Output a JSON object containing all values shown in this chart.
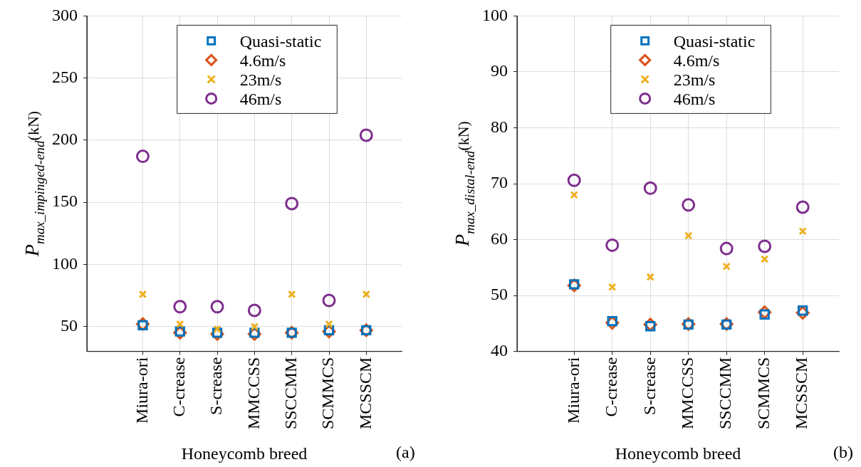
{
  "chart_data": [
    {
      "type": "scatter",
      "categories": [
        "Miura-ori",
        "C-crease",
        "S-crease",
        "MMCCSS",
        "SSCCMM",
        "SCMMCS",
        "MCSSCM"
      ],
      "xlabel": "Honeycomb breed",
      "ylabel": "P$_{max_impinged-end}$(kN)",
      "ylim": [
        30,
        300
      ],
      "yticks": [
        50,
        100,
        150,
        200,
        250,
        300
      ],
      "grid": true,
      "legend": "top",
      "annotations": [
        "(a)"
      ],
      "series": [
        {
          "name": "Quasi-static",
          "color": "#0072bd",
          "marker": "square",
          "values": [
            51,
            46,
            45,
            45,
            45,
            47,
            47
          ]
        },
        {
          "name": "4.6m/s",
          "color": "#d95319",
          "marker": "diamond",
          "values": [
            52,
            45,
            44,
            44,
            45,
            46,
            47
          ]
        },
        {
          "name": "23m/s",
          "color": "#edb120",
          "marker": "cross",
          "values": [
            76,
            52,
            48,
            50,
            76,
            52,
            76
          ]
        },
        {
          "name": "46m/s",
          "color": "#7e2f8e",
          "marker": "circle",
          "values": [
            187,
            66,
            66,
            63,
            149,
            71,
            204
          ]
        }
      ]
    },
    {
      "type": "scatter",
      "categories": [
        "Miura-ori",
        "C-crease",
        "S-crease",
        "MMCCSS",
        "SSCCMM",
        "SCMMCS",
        "MCSSCM"
      ],
      "xlabel": "Honeycomb breed",
      "ylabel": "P$_{max_distal-end}$(kN)",
      "ylim": [
        40,
        100
      ],
      "yticks": [
        40,
        50,
        60,
        70,
        80,
        90,
        100
      ],
      "grid": true,
      "legend": "top",
      "annotations": [
        "(b)"
      ],
      "series": [
        {
          "name": "Quasi-static",
          "color": "#0072bd",
          "marker": "square",
          "values": [
            52,
            45.4,
            44.5,
            44.8,
            44.8,
            46.6,
            47.3
          ]
        },
        {
          "name": "4.6m/s",
          "color": "#d95319",
          "marker": "diamond",
          "values": [
            51.8,
            45.1,
            44.8,
            44.9,
            44.9,
            47,
            46.9
          ]
        },
        {
          "name": "23m/s",
          "color": "#edb120",
          "marker": "cross",
          "values": [
            68,
            51.5,
            53.3,
            60.7,
            55.2,
            56.5,
            61.5
          ]
        },
        {
          "name": "46m/s",
          "color": "#7e2f8e",
          "marker": "circle",
          "values": [
            70.6,
            59,
            69.2,
            66.2,
            58.4,
            58.8,
            65.8
          ]
        }
      ]
    }
  ]
}
